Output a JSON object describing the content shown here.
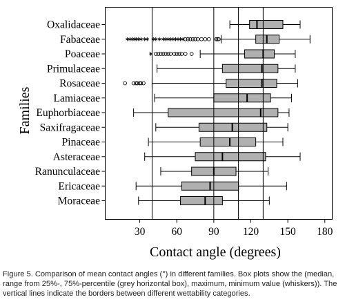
{
  "chart_data": {
    "type": "boxplot",
    "orientation": "horizontal",
    "xlabel": "Contact angle (degrees)",
    "ylabel": "Families",
    "xlim": [
      2,
      186
    ],
    "xticks": [
      30,
      60,
      90,
      120,
      150,
      180
    ],
    "grid": false,
    "reference_lines_x": [
      40,
      90,
      110,
      130
    ],
    "categories": [
      "Oxalidaceae",
      "Fabaceae",
      "Poaceae",
      "Primulaceae",
      "Rosaceae",
      "Lamiaceae",
      "Euphorbiaceae",
      "Saxifragaceae",
      "Pinaceae",
      "Asteraceae",
      "Ranunculaceae",
      "Ericaceae",
      "Moraceae"
    ],
    "boxes": [
      {
        "min": 103,
        "q1": 119,
        "median": 125,
        "q3": 146,
        "max": 160,
        "outliers": [],
        "extremes": []
      },
      {
        "min": 96,
        "q1": 124,
        "median": 133,
        "q3": 143,
        "max": 168,
        "outliers": [
          67,
          69,
          71,
          73,
          75,
          77,
          80,
          83,
          86,
          92,
          93,
          94
        ],
        "extremes": [
          20,
          22,
          24,
          26,
          27,
          29,
          31,
          34,
          36,
          41,
          43,
          46,
          49,
          51,
          53,
          55,
          57,
          59,
          61,
          63,
          65
        ]
      },
      {
        "min": 79,
        "q1": 115,
        "median": 130,
        "q3": 139,
        "max": 156,
        "outliers": [
          43,
          45,
          47,
          49,
          51,
          53,
          55,
          58,
          60,
          62,
          64,
          67,
          72
        ],
        "extremes": [
          39
        ]
      },
      {
        "min": 44,
        "q1": 97,
        "median": 129,
        "q3": 142,
        "max": 156,
        "outliers": [],
        "extremes": []
      },
      {
        "min": 40,
        "q1": 100,
        "median": 129,
        "q3": 141,
        "max": 158,
        "outliers": [
          18,
          25,
          27,
          28,
          30,
          31,
          33
        ],
        "extremes": []
      },
      {
        "min": 42,
        "q1": 90,
        "median": 117,
        "q3": 136,
        "max": 153,
        "outliers": [],
        "extremes": []
      },
      {
        "min": 25,
        "q1": 53,
        "median": 128,
        "q3": 142,
        "max": 151,
        "outliers": [],
        "extremes": []
      },
      {
        "min": 43,
        "q1": 78,
        "median": 105,
        "q3": 133,
        "max": 150,
        "outliers": [],
        "extremes": []
      },
      {
        "min": 37,
        "q1": 79,
        "median": 103,
        "q3": 124,
        "max": 146,
        "outliers": [],
        "extremes": []
      },
      {
        "min": 34,
        "q1": 75,
        "median": 97,
        "q3": 132,
        "max": 160,
        "outliers": [],
        "extremes": []
      },
      {
        "min": 47,
        "q1": 72,
        "median": 90,
        "q3": 108,
        "max": 134,
        "outliers": [],
        "extremes": []
      },
      {
        "min": 27,
        "q1": 64,
        "median": 87,
        "q3": 110,
        "max": 149,
        "outliers": [],
        "extremes": []
      },
      {
        "min": 29,
        "q1": 63,
        "median": 83,
        "q3": 97,
        "max": 135,
        "outliers": [],
        "extremes": []
      }
    ],
    "outlier_marker": "circle",
    "extreme_marker": "asterisk",
    "colors": {
      "box_fill": "#b0b0b0",
      "lines": "#000000"
    }
  },
  "figure": {
    "caption_lines": [
      "Figure 5. Comparison of mean contact angles (°) in different families. Box plots show the (median,",
      "range from 25%-, 75%-percentile (grey horizontal box), maximum, minimum value (whiskers)). The",
      "vertical lines indicate the borders between different wettability categories."
    ]
  }
}
